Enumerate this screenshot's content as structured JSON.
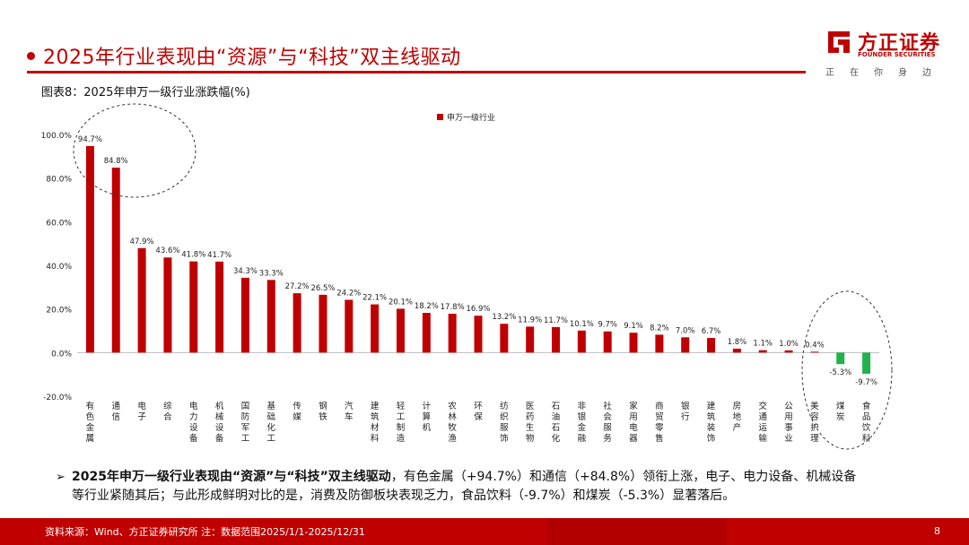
{
  "header": {
    "title": "2025年行业表现由“资源”与“科技”双主线驱动"
  },
  "logo": {
    "name_cn": "方正证券",
    "name_en": "FOUNDER SECURITIES",
    "slogan": "正在你身边"
  },
  "figure": {
    "caption": "图表8：2025年申万一级行业涨跌幅(%)"
  },
  "chart_data": {
    "type": "bar",
    "legend": "申万一级行业",
    "legend_position": "top-center",
    "categories": [
      "有色金属",
      "通信",
      "电子",
      "综合",
      "电力设备",
      "机械设备",
      "国防军工",
      "基础化工",
      "传媒",
      "钢铁",
      "汽车",
      "建筑材料",
      "轻工制造",
      "计算机",
      "农林牧渔",
      "环保",
      "纺织服饰",
      "医药生物",
      "石油石化",
      "非银金融",
      "社会服务",
      "家用电器",
      "商贸零售",
      "银行",
      "建筑装饰",
      "房地产",
      "交通运输",
      "公用事业",
      "美容护理",
      "煤炭",
      "食品饮料"
    ],
    "values": [
      94.7,
      84.8,
      47.9,
      43.6,
      41.8,
      41.7,
      34.3,
      33.3,
      27.2,
      26.5,
      24.2,
      22.1,
      20.1,
      18.2,
      17.8,
      16.9,
      13.2,
      11.9,
      11.7,
      10.1,
      9.7,
      9.1,
      8.2,
      7.0,
      6.7,
      1.8,
      1.1,
      1.0,
      0.4,
      -5.3,
      -9.7
    ],
    "value_labels": [
      "94.7%",
      "84.8%",
      "47.9%",
      "43.6%",
      "41.8%",
      "41.7%",
      "34.3%",
      "33.3%",
      "27.2%",
      "26.5%",
      "24.2%",
      "22.1%",
      "20.1%",
      "18.2%",
      "17.8%",
      "16.9%",
      "13.2%",
      "11.9%",
      "11.7%",
      "10.1%",
      "9.7%",
      "9.1%",
      "8.2%",
      "7.0%",
      "6.7%",
      "1.8%",
      "1.1%",
      "1.0%",
      "0.4%",
      "-5.3%",
      "-9.7%"
    ],
    "yticks": [
      "100.0%",
      "80.0%",
      "60.0%",
      "40.0%",
      "20.0%",
      "0.0%",
      "-20.0%"
    ],
    "ytick_values": [
      100,
      80,
      60,
      40,
      20,
      0,
      -20
    ],
    "ylim": [
      -20,
      100
    ],
    "grid": false,
    "positive_color": "#c00000",
    "negative_color": "#22b14c"
  },
  "summary": {
    "lead": "2025年申万一级行业表现由“资源”与“科技”双主线驱动",
    "body": "，有色金属（+94.7%）和通信（+84.8%）领衔上涨，电子、电力设备、机械设备等行业紧随其后；与此形成鲜明对比的是，消费及防御板块表现乏力，食品饮料（-9.7%）和煤炭（-5.3%）显著落后。"
  },
  "footer": {
    "source": "资料来源：Wind、方正证券研究所 注：数据范围2025/1/1-2025/12/31",
    "page": "8"
  }
}
